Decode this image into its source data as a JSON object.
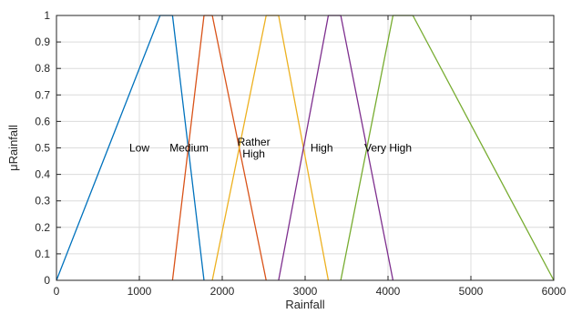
{
  "chart_data": {
    "type": "line",
    "title": "",
    "xlabel": "Rainfall",
    "ylabel": "μRainfall",
    "xlim": [
      0,
      6000
    ],
    "ylim": [
      0,
      1
    ],
    "xticks": [
      0,
      1000,
      2000,
      3000,
      4000,
      5000,
      6000
    ],
    "yticks": [
      0,
      0.1,
      0.2,
      0.3,
      0.4,
      0.5,
      0.6,
      0.7,
      0.8,
      0.9,
      1
    ],
    "grid": true,
    "series": [
      {
        "color": "#0072BD",
        "x": [
          0,
          1250,
          1400,
          1780
        ],
        "y": [
          0,
          1,
          1,
          0
        ]
      },
      {
        "color": "#D95319",
        "x": [
          1400,
          1780,
          1880,
          2530
        ],
        "y": [
          0,
          1,
          1,
          0
        ]
      },
      {
        "color": "#EDB120",
        "x": [
          1880,
          2530,
          2680,
          3280
        ],
        "y": [
          0,
          1,
          1,
          0
        ]
      },
      {
        "color": "#7E2F8E",
        "x": [
          2680,
          3280,
          3430,
          4060
        ],
        "y": [
          0,
          1,
          1,
          0
        ]
      },
      {
        "color": "#77AC30",
        "x": [
          3430,
          4060,
          4300,
          6000
        ],
        "y": [
          0,
          1,
          1,
          0
        ]
      }
    ],
    "annotations": [
      {
        "lines": [
          "Low"
        ],
        "x": 1000,
        "y": 0.5
      },
      {
        "lines": [
          "Medium"
        ],
        "x": 1600,
        "y": 0.5
      },
      {
        "lines": [
          "Rather",
          "High"
        ],
        "x": 2380,
        "y": 0.5
      },
      {
        "lines": [
          "High"
        ],
        "x": 3200,
        "y": 0.5
      },
      {
        "lines": [
          "Very High"
        ],
        "x": 4000,
        "y": 0.5
      }
    ]
  }
}
